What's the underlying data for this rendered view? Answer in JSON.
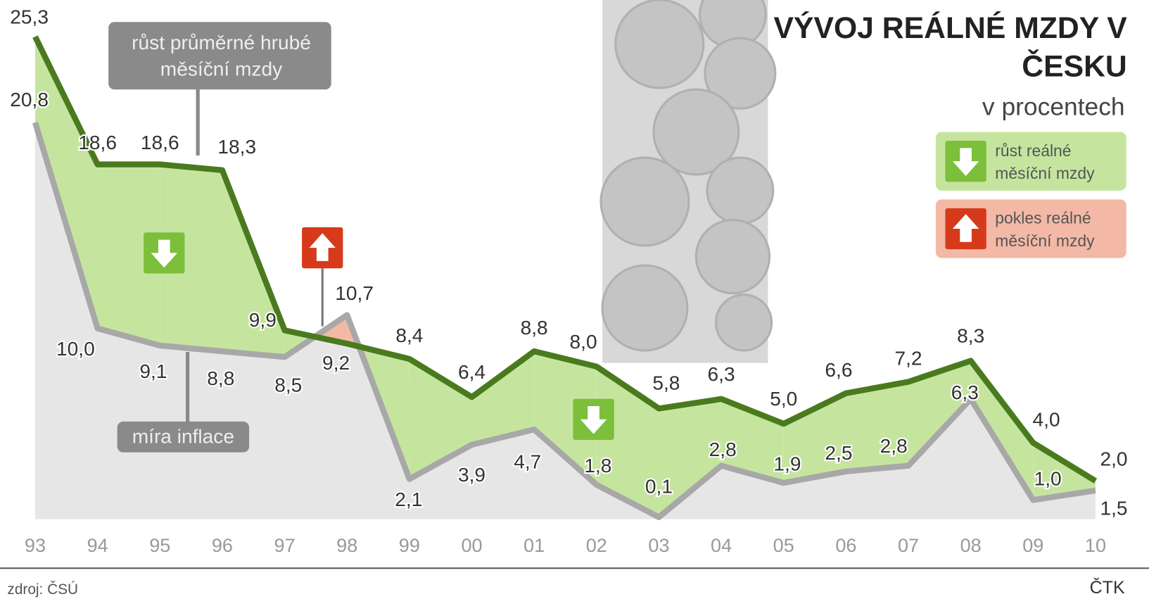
{
  "chart_data": {
    "type": "line",
    "title": "VÝVOJ REÁLNÉ MZDY V ČESKU",
    "subtitle": "v procentech",
    "categories": [
      "93",
      "94",
      "95",
      "96",
      "97",
      "98",
      "99",
      "00",
      "01",
      "02",
      "03",
      "04",
      "05",
      "06",
      "07",
      "08",
      "09",
      "10"
    ],
    "series": [
      {
        "name": "růst průměrné hrubé měsíční mzdy",
        "color": "#4a7a1e",
        "values": [
          25.3,
          18.6,
          18.6,
          18.3,
          9.9,
          9.2,
          8.4,
          6.4,
          8.8,
          8.0,
          5.8,
          6.3,
          5.0,
          6.6,
          7.2,
          8.3,
          4.0,
          2.0
        ],
        "value_labels": [
          "25,3",
          "18,6",
          "18,6",
          "18,3",
          "9,9",
          "9,2",
          "8,4",
          "6,4",
          "8,8",
          "8,0",
          "5,8",
          "6,3",
          "5,0",
          "6,6",
          "7,2",
          "8,3",
          "4,0",
          "2,0"
        ]
      },
      {
        "name": "míra inflace",
        "color": "#a8a8a8",
        "values": [
          20.8,
          10.0,
          9.1,
          8.8,
          8.5,
          10.7,
          2.1,
          3.9,
          4.7,
          1.8,
          0.1,
          2.8,
          1.9,
          2.5,
          2.8,
          6.3,
          1.0,
          1.5
        ],
        "value_labels": [
          "20,8",
          "10,0",
          "9,1",
          "8,8",
          "8,5",
          "10,7",
          "2,1",
          "3,9",
          "4,7",
          "1,8",
          "0,1",
          "2,8",
          "1,9",
          "2,5",
          "2,8",
          "6,3",
          "1,0",
          "1,5"
        ]
      }
    ],
    "legend": [
      {
        "label": "růst reálné měsíční mzdy",
        "color": "#c5e59f"
      },
      {
        "label": "pokles reálné měsíční mzdy",
        "color": "#f3b9a6"
      }
    ],
    "ylim": [
      0,
      25.3
    ],
    "source": "zdroj: ČSÚ",
    "credit": "ČTK"
  }
}
